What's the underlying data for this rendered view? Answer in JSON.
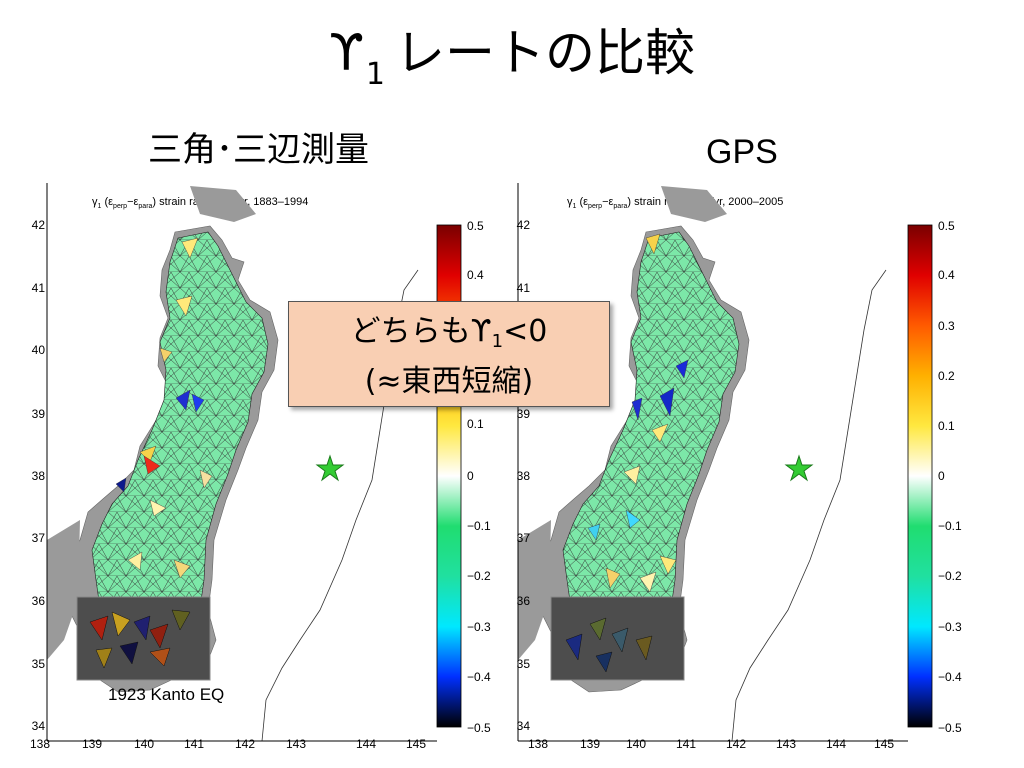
{
  "title": {
    "symbol": "ϒ",
    "subscript": "1",
    "text": "レートの比較"
  },
  "panels": [
    {
      "heading": "三角･三辺測量",
      "map_title": {
        "gamma": "γ",
        "gamma_sub": "1",
        "eps1": "ε",
        "eps1_sub": "perp",
        "minus": "−",
        "eps2": "ε",
        "eps2_sub": "para",
        "rest": "strain rate, ppm/yr, 1883–1994"
      },
      "inset_caption": "1923 Kanto EQ"
    },
    {
      "heading": "GPS",
      "map_title": {
        "gamma": "γ",
        "gamma_sub": "1",
        "eps1": "ε",
        "eps1_sub": "perp",
        "minus": "−",
        "eps2": "ε",
        "eps2_sub": "para",
        "rest": "strain rate, ppm/yr, 2000–2005"
      }
    }
  ],
  "axes": {
    "longitude_ticks": [
      "138",
      "139",
      "140",
      "141",
      "142",
      "143",
      "144",
      "145"
    ],
    "latitude_ticks": [
      "34",
      "35",
      "36",
      "37",
      "38",
      "39",
      "40",
      "41",
      "42"
    ]
  },
  "colorbar": {
    "ticks": [
      "0.5",
      "0.4",
      "0.3",
      "0.2",
      "0.1",
      "0",
      "−0.1",
      "−0.2",
      "−0.3",
      "−0.4",
      "−0.5"
    ],
    "left_visible_ticks": [
      "0.5",
      "0.4",
      "0.1",
      "0",
      "−0.1",
      "−0.2",
      "−0.3",
      "−0.4",
      "−0.5"
    ]
  },
  "callout": {
    "line1_prefix": "どちらも",
    "symbol": "ϒ",
    "subscript": "1",
    "suffix": "<0",
    "line2": "(≈東西短縮)"
  },
  "epicenter": {
    "marker": "star-icon",
    "color": "#22cc22",
    "lon": 143.3,
    "lat": 38.2
  },
  "colors": {
    "land": "#a0a0a0",
    "positive": "#ff3300",
    "zero": "#ffffff",
    "negative": "#22cc66",
    "inset": "#4a4a4a"
  }
}
